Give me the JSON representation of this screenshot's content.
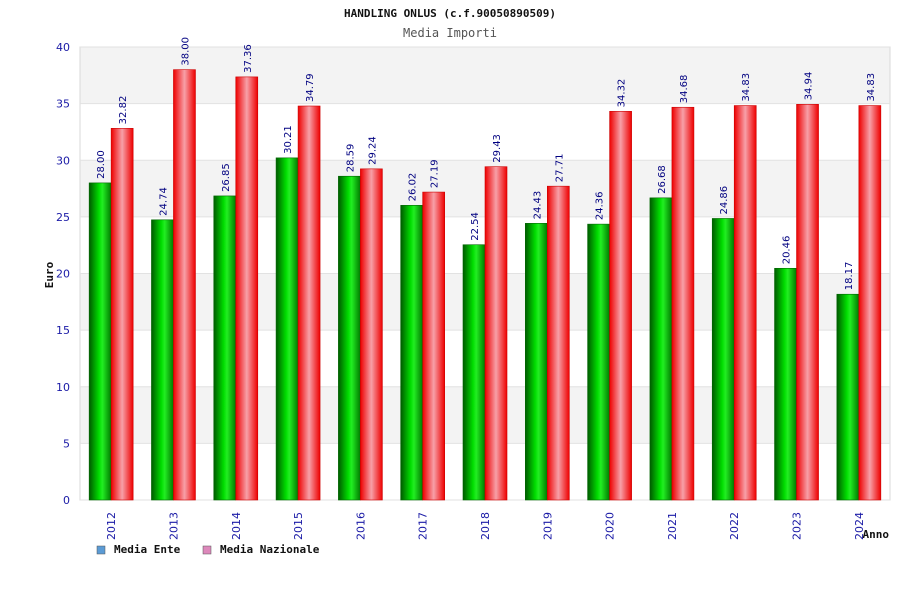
{
  "chart_data": {
    "type": "bar",
    "title": "HANDLING ONLUS (c.f.90050890509)",
    "subtitle": "Media Importi",
    "xlabel": "Anno",
    "ylabel": "Euro",
    "ylim": [
      0,
      40
    ],
    "yticks": [
      "0",
      "5",
      "10",
      "15",
      "20",
      "25",
      "30",
      "35",
      "40"
    ],
    "categories": [
      "2012",
      "2013",
      "2014",
      "2015",
      "2016",
      "2017",
      "2018",
      "2019",
      "2020",
      "2021",
      "2022",
      "2023",
      "2024"
    ],
    "series": [
      {
        "name": "Media Ente",
        "values": [
          28.0,
          24.74,
          26.85,
          30.21,
          28.59,
          26.02,
          22.54,
          24.43,
          24.36,
          26.68,
          24.86,
          20.46,
          18.17
        ],
        "labels": [
          "28.00",
          "24.74",
          "26.85",
          "30.21",
          "28.59",
          "26.02",
          "22.54",
          "24.43",
          "24.36",
          "26.68",
          "24.86",
          "20.46",
          "18.17"
        ],
        "color": "#00b000"
      },
      {
        "name": "Media Nazionale",
        "values": [
          32.82,
          38.0,
          37.36,
          34.79,
          29.24,
          27.19,
          29.43,
          27.71,
          34.32,
          34.68,
          34.83,
          34.94,
          34.83
        ],
        "labels": [
          "32.82",
          "38.00",
          "37.36",
          "34.79",
          "29.24",
          "27.19",
          "29.43",
          "27.71",
          "34.32",
          "34.68",
          "34.83",
          "34.94",
          "34.83"
        ],
        "color": "#ee0000"
      }
    ],
    "legend": {
      "position": "bottom-left",
      "items": [
        {
          "label": "Media Ente",
          "color": "#5b9bd5"
        },
        {
          "label": "Media Nazionale",
          "color": "#dd88bb"
        }
      ]
    },
    "grid": true,
    "plot_bands": [
      "#f3f3f3",
      "#ffffff"
    ]
  }
}
